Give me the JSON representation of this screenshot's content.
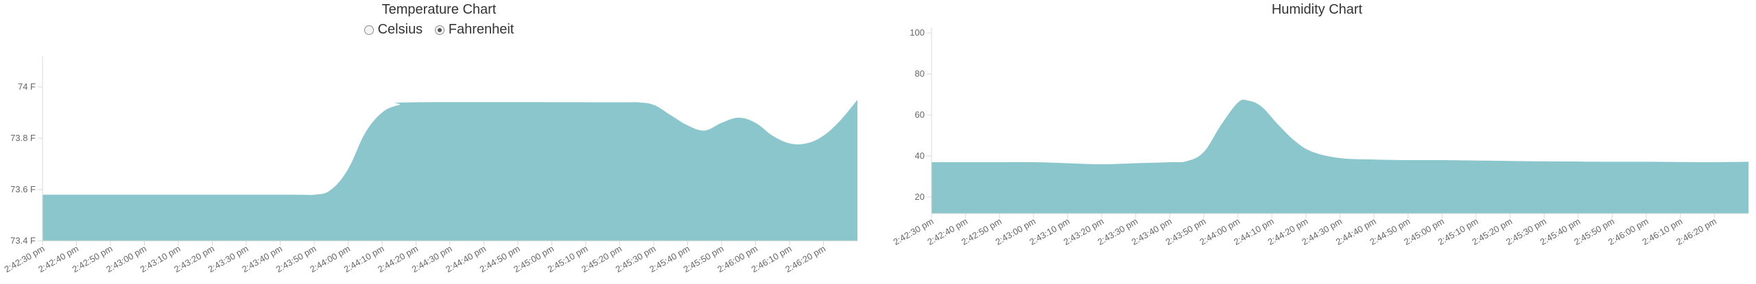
{
  "temperature": {
    "title": "Temperature Chart",
    "units": [
      {
        "label": "Celsius",
        "checked": false
      },
      {
        "label": "Fahrenheit",
        "checked": true
      }
    ]
  },
  "humidity": {
    "title": "Humidity Chart"
  },
  "colors": {
    "fill": "#8ac6cc",
    "axis": "#d9d9d9",
    "text": "#666666"
  },
  "chart_data": [
    {
      "type": "area",
      "title": "Temperature Chart",
      "x": [
        "2:42:30 pm",
        "2:42:40 pm",
        "2:42:50 pm",
        "2:43:00 pm",
        "2:43:10 pm",
        "2:43:20 pm",
        "2:43:30 pm",
        "2:43:40 pm",
        "2:43:50 pm",
        "2:44:00 pm",
        "2:44:10 pm",
        "2:44:20 pm",
        "2:44:30 pm",
        "2:44:40 pm",
        "2:44:50 pm",
        "2:45:00 pm",
        "2:45:10 pm",
        "2:45:20 pm",
        "2:45:30 pm",
        "2:45:40 pm",
        "2:45:50 pm",
        "2:46:00 pm",
        "2:46:10 pm",
        "2:46:20 pm"
      ],
      "y_ticks": [
        "73.4 F",
        "73.6 F",
        "73.8 F",
        "74 F"
      ],
      "ylim": [
        73.4,
        74.0
      ],
      "series": [
        {
          "values": [
            [
              0,
              73.58
            ],
            [
              7,
              73.58
            ],
            [
              8,
              73.58
            ],
            [
              8.5,
              73.6
            ],
            [
              9,
              73.68
            ],
            [
              9.5,
              73.82
            ],
            [
              10,
              73.9
            ],
            [
              10.5,
              73.93
            ],
            [
              11,
              73.94
            ],
            [
              17,
              73.94
            ],
            [
              17.5,
              73.94
            ],
            [
              18,
              73.93
            ],
            [
              18.5,
              73.89
            ],
            [
              19,
              73.85
            ],
            [
              19.5,
              73.83
            ],
            [
              20,
              73.86
            ],
            [
              20.5,
              73.88
            ],
            [
              21,
              73.86
            ],
            [
              21.5,
              73.81
            ],
            [
              22,
              73.78
            ],
            [
              22.5,
              73.78
            ],
            [
              23,
              73.81
            ],
            [
              23.5,
              73.87
            ],
            [
              24,
              73.95
            ]
          ]
        }
      ],
      "grid": false
    },
    {
      "type": "area",
      "title": "Humidity Chart",
      "x": [
        "2:42:30 pm",
        "2:42:40 pm",
        "2:42:50 pm",
        "2:43:00 pm",
        "2:43:10 pm",
        "2:43:20 pm",
        "2:43:30 pm",
        "2:43:40 pm",
        "2:43:50 pm",
        "2:44:00 pm",
        "2:44:10 pm",
        "2:44:20 pm",
        "2:44:30 pm",
        "2:44:40 pm",
        "2:44:50 pm",
        "2:45:00 pm",
        "2:45:10 pm",
        "2:45:20 pm",
        "2:45:30 pm",
        "2:45:40 pm",
        "2:45:50 pm",
        "2:46:00 pm",
        "2:46:10 pm",
        "2:46:20 pm"
      ],
      "y_ticks": [
        "20",
        "40",
        "60",
        "80",
        "100"
      ],
      "ylim": [
        12,
        100
      ],
      "series": [
        {
          "values": [
            [
              0,
              37
            ],
            [
              1,
              37
            ],
            [
              2,
              37
            ],
            [
              3,
              37
            ],
            [
              4,
              36.5
            ],
            [
              5,
              36
            ],
            [
              6,
              36.5
            ],
            [
              7,
              37
            ],
            [
              7.5,
              37.5
            ],
            [
              8,
              42
            ],
            [
              8.5,
              55
            ],
            [
              9,
              66
            ],
            [
              9.3,
              67
            ],
            [
              9.7,
              64
            ],
            [
              10.2,
              55
            ],
            [
              10.7,
              47
            ],
            [
              11.2,
              42
            ],
            [
              12,
              39
            ],
            [
              13,
              38.3
            ],
            [
              14,
              38
            ],
            [
              15,
              38
            ],
            [
              16,
              37.8
            ],
            [
              17,
              37.6
            ],
            [
              18,
              37.4
            ],
            [
              19,
              37.3
            ],
            [
              20,
              37.2
            ],
            [
              21,
              37.2
            ],
            [
              22,
              37.1
            ],
            [
              23,
              37
            ],
            [
              24,
              37.2
            ]
          ]
        }
      ],
      "grid": false
    }
  ]
}
